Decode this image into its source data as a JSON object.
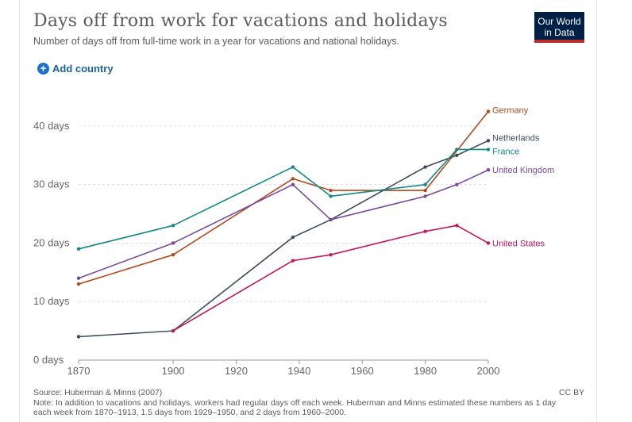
{
  "header": {
    "title": "Days off from work for vacations and holidays",
    "subtitle": "Number of days off from full-time work in a year for vacations and national holidays."
  },
  "logo": {
    "line1": "Our World",
    "line2": "in Data",
    "bg_color": "#002147",
    "bar_color": "#be2d2d"
  },
  "controls": {
    "add_country_label": "Add country",
    "add_icon": "plus-circle-icon"
  },
  "footer": {
    "source": "Source: Huberman & Minns (2007)",
    "note": "Note: In addition to vacations and holidays, workers had regular days off each week. Huberman and Minns estimated these numbers as 1 day each week from 1870–1913, 1.5 days from 1929–1950, and 2 days from 1960–2000.",
    "license": "CC BY"
  },
  "chart_data": {
    "type": "line",
    "title": "Days off from work for vacations and holidays",
    "subtitle": "Number of days off from full-time work in a year for vacations and national holidays.",
    "xlabel": "",
    "ylabel": "",
    "xlim": [
      1870,
      2000
    ],
    "ylim": [
      0,
      45
    ],
    "x_ticks": [
      1870,
      1900,
      1920,
      1940,
      1960,
      1980,
      2000
    ],
    "y_ticks": [
      {
        "value": 0,
        "label": "0 days"
      },
      {
        "value": 10,
        "label": "10 days"
      },
      {
        "value": 20,
        "label": "20 days"
      },
      {
        "value": 30,
        "label": "30 days"
      },
      {
        "value": 40,
        "label": "40 days"
      }
    ],
    "grid": "horizontal-dashed",
    "legend": "inline-right",
    "series": [
      {
        "name": "Germany",
        "color": "#b04a1d",
        "points": [
          [
            1870,
            13
          ],
          [
            1900,
            18
          ],
          [
            1938,
            31
          ],
          [
            1950,
            29
          ],
          [
            1980,
            29
          ],
          [
            2000,
            42.5
          ]
        ]
      },
      {
        "name": "Netherlands",
        "color": "#3d4b5c",
        "points": [
          [
            1870,
            4
          ],
          [
            1900,
            5
          ],
          [
            1938,
            21
          ],
          [
            1950,
            24
          ],
          [
            1980,
            33
          ],
          [
            1990,
            35
          ],
          [
            2000,
            37.5
          ]
        ]
      },
      {
        "name": "France",
        "color": "#15878a",
        "points": [
          [
            1870,
            19
          ],
          [
            1900,
            23
          ],
          [
            1938,
            33
          ],
          [
            1950,
            28
          ],
          [
            1980,
            30
          ],
          [
            1990,
            36
          ],
          [
            2000,
            36
          ]
        ]
      },
      {
        "name": "United Kingdom",
        "color": "#7d4a9b",
        "points": [
          [
            1870,
            14
          ],
          [
            1900,
            20
          ],
          [
            1938,
            30
          ],
          [
            1950,
            24
          ],
          [
            1980,
            28
          ],
          [
            1990,
            30
          ],
          [
            2000,
            32.5
          ]
        ]
      },
      {
        "name": "United States",
        "color": "#c2185b",
        "points": [
          [
            1900,
            5
          ],
          [
            1938,
            17
          ],
          [
            1950,
            18
          ],
          [
            1980,
            22
          ],
          [
            1990,
            23
          ],
          [
            2000,
            20
          ]
        ]
      }
    ]
  }
}
